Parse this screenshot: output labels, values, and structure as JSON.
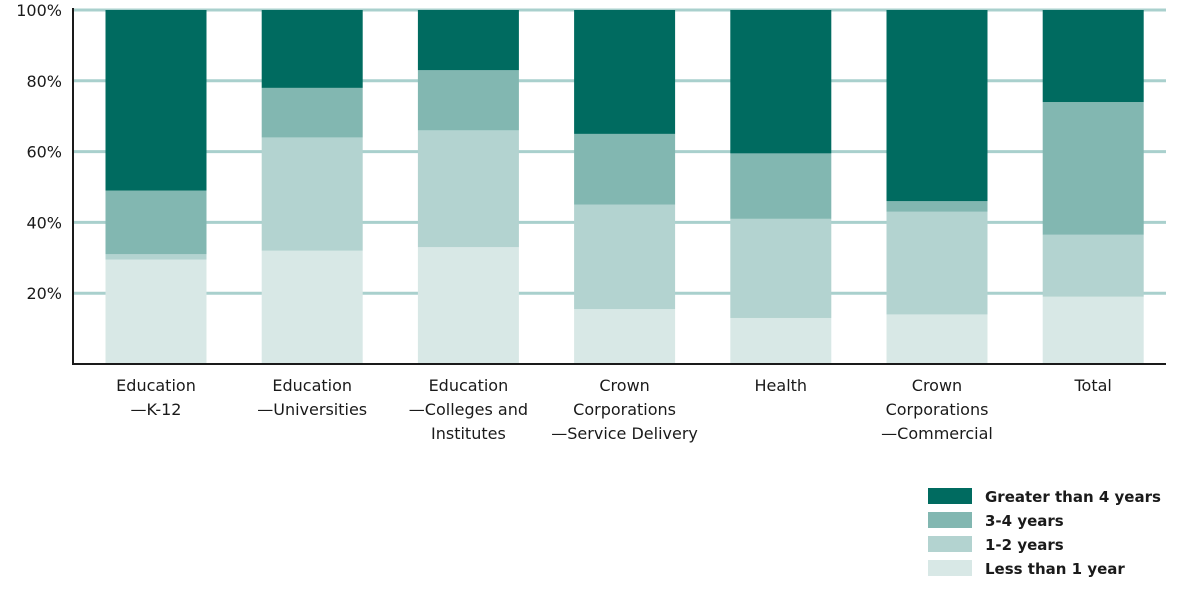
{
  "chart_data": {
    "type": "bar",
    "stacked": true,
    "categories": [
      [
        "Education",
        "—K-12"
      ],
      [
        "Education",
        "—Universities"
      ],
      [
        "Education",
        "—Colleges and",
        "Institutes"
      ],
      [
        "Crown",
        "Corporations",
        "—Service Delivery"
      ],
      [
        "Health"
      ],
      [
        "Crown",
        "Corporations",
        "—Commercial"
      ],
      [
        "Total"
      ]
    ],
    "series": [
      {
        "name": "Less than 1 year",
        "color": "#d8e8e6",
        "values": [
          29.5,
          32,
          33,
          15.5,
          13,
          14,
          19
        ]
      },
      {
        "name": "1-2 years",
        "color": "#b3d3d0",
        "values": [
          1.5,
          32,
          33,
          29.5,
          28,
          29,
          17.5
        ]
      },
      {
        "name": "3-4 years",
        "color": "#82b7b1",
        "values": [
          18,
          14,
          17,
          20,
          18.5,
          3,
          37.5
        ]
      },
      {
        "name": "Greater than 4 years",
        "color": "#006b60",
        "values": [
          51,
          22,
          17,
          35,
          40.5,
          54,
          26
        ]
      }
    ],
    "y_ticks": [
      20,
      40,
      60,
      80,
      100
    ],
    "y_tick_format": "{v}%",
    "ylim": [
      0,
      100
    ],
    "grid": true,
    "grid_color": "#a9d0cd",
    "legend_position": "bottom-right",
    "legend_order": [
      "Greater than 4 years",
      "3-4 years",
      "1-2 years",
      "Less than 1 year"
    ],
    "title": "",
    "xlabel": "",
    "ylabel": ""
  }
}
